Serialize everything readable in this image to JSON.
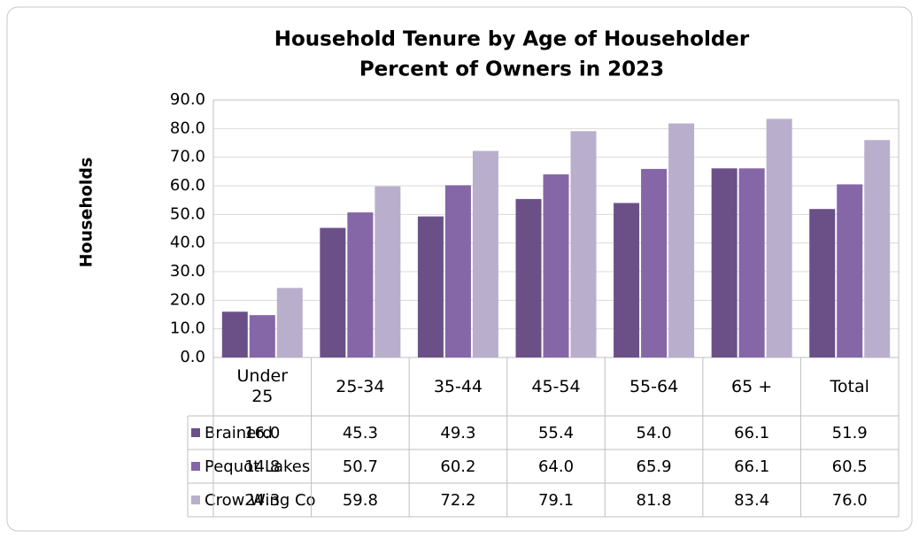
{
  "chart_data": {
    "type": "bar",
    "title": "Household Tenure by Age of Householder",
    "subtitle": "Percent of Owners in 2023",
    "y_label": "Households",
    "categories": [
      "Under 25",
      "25-34",
      "35-44",
      "45-54",
      "55-64",
      "65 +",
      "Total"
    ],
    "series": [
      {
        "name": "Brainerd",
        "color": "#6b5088",
        "values": [
          16,
          45.3,
          49.3,
          55.4,
          54,
          66.1,
          51.9
        ],
        "value_labels": [
          "16.0",
          "45.3",
          "49.3",
          "55.4",
          "54.0",
          "66.1",
          "51.9"
        ]
      },
      {
        "name": "Pequot Lakes",
        "color": "#8566a7",
        "values": [
          14.8,
          50.7,
          60.2,
          64,
          65.9,
          66.1,
          60.5
        ],
        "value_labels": [
          "14.8",
          "50.7",
          "60.2",
          "64.0",
          "65.9",
          "66.1",
          "60.5"
        ]
      },
      {
        "name": "Crow Wing Co",
        "color": "#b9afcc",
        "values": [
          24.3,
          59.8,
          72.2,
          79.1,
          81.8,
          83.4,
          76
        ],
        "value_labels": [
          "24.3",
          "59.8",
          "72.2",
          "79.1",
          "81.8",
          "83.4",
          "76.0"
        ]
      }
    ],
    "ylim": [
      0,
      90
    ],
    "yticks": [
      {
        "value": 0,
        "label": "0.0"
      },
      {
        "value": 10,
        "label": "10.0"
      },
      {
        "value": 20,
        "label": "20.0"
      },
      {
        "value": 30,
        "label": "30.0"
      },
      {
        "value": 40,
        "label": "40.0"
      },
      {
        "value": 50,
        "label": "50.0"
      },
      {
        "value": 60,
        "label": "60.0"
      },
      {
        "value": 70,
        "label": "70.0"
      },
      {
        "value": 80,
        "label": "80.0"
      },
      {
        "value": 90,
        "label": "90.0"
      }
    ],
    "grid": true
  }
}
